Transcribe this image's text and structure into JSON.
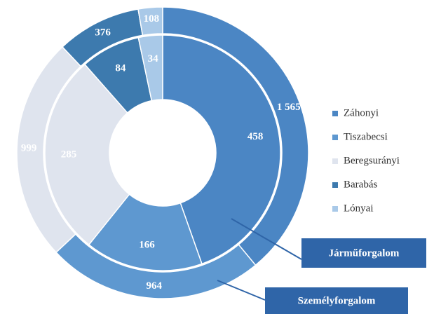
{
  "chart_data": {
    "type": "donut",
    "categories": [
      "Záhonyi",
      "Tiszabecsi",
      "Beregsurányi",
      "Barabás",
      "Lónyai"
    ],
    "colors": [
      "#4b86c4",
      "#5e98d0",
      "#dfe4ee",
      "#3d7aae",
      "#a9c9e8"
    ],
    "series": [
      {
        "name": "Járműforgalom",
        "values": [
          458,
          166,
          285,
          84,
          34
        ]
      },
      {
        "name": "Személyforgalom",
        "values": [
          1565,
          964,
          999,
          376,
          108
        ],
        "value_labels": [
          "1 565",
          "964",
          "999",
          "376",
          "108"
        ]
      }
    ]
  }
}
